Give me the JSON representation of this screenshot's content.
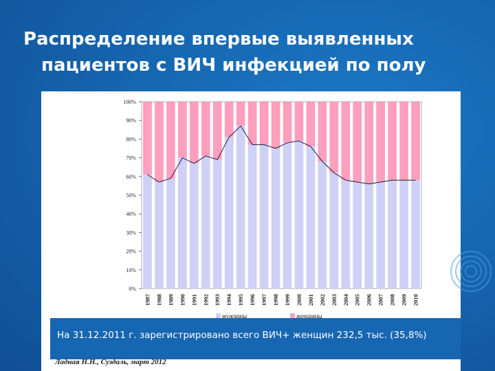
{
  "slide": {
    "title_line1": "Распределение впервые выявленных",
    "title_line2": "пациентов с ВИЧ инфекцией по полу",
    "note": "На 31.12.2011 г. зарегистрировано всего ВИЧ+ женщин 232,5 тыс. (35,8%)",
    "credit": "Ладная Н.Н., Суздаль, март 2012"
  },
  "colors": {
    "men": "#cfd0f6",
    "women": "#ff9fbd",
    "line": "#1a1a40"
  },
  "chart_data": {
    "type": "bar",
    "stacked": true,
    "categories": [
      "1987",
      "1988",
      "1989",
      "1990",
      "1991",
      "1992",
      "1993",
      "1994",
      "1995",
      "1996",
      "1997",
      "1998",
      "1999",
      "2000",
      "2001",
      "2002",
      "2003",
      "2004",
      "2005",
      "2006",
      "2007",
      "2008",
      "2009",
      "2010"
    ],
    "series": [
      {
        "name": "мужчины",
        "values": [
          61,
          57,
          59,
          70,
          67,
          71,
          69,
          81,
          87,
          77,
          77,
          75,
          78,
          79,
          76,
          68,
          62,
          58,
          57,
          56,
          57,
          58,
          58,
          58
        ]
      },
      {
        "name": "женщины",
        "values": [
          39,
          43,
          41,
          30,
          33,
          29,
          31,
          19,
          13,
          23,
          23,
          25,
          22,
          21,
          24,
          32,
          38,
          42,
          43,
          44,
          43,
          42,
          42,
          42
        ]
      }
    ],
    "yticks": [
      "0%",
      "10%",
      "20%",
      "30%",
      "40%",
      "50%",
      "60%",
      "70%",
      "80%",
      "90%",
      "100%"
    ],
    "ylim": [
      0,
      100
    ],
    "legend_position": "bottom"
  }
}
